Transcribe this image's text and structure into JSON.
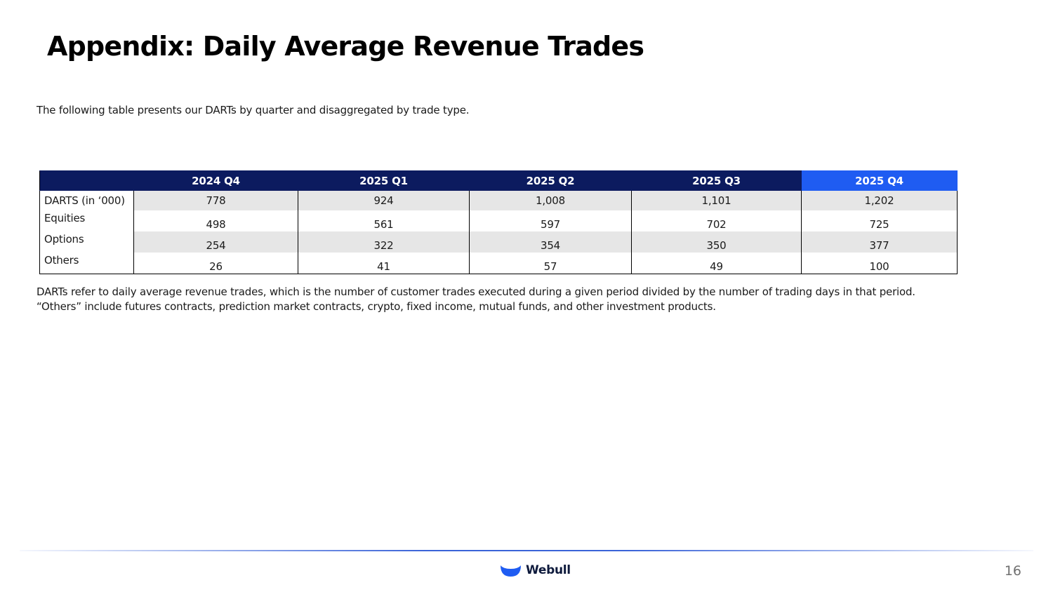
{
  "title": "Appendix:  Daily Average Revenue Trades",
  "intro": "The following table presents our DARTs by quarter and disaggregated by trade type.",
  "table": {
    "corner": "",
    "columns": [
      "2024 Q4",
      "2025 Q1",
      "2025 Q2",
      "2025 Q3",
      "2025 Q4"
    ],
    "highlight_color": "#1f5cf2",
    "header_color": "#0c1b5f",
    "rows": [
      {
        "label": "DARTS (in ‘000)",
        "values": [
          "778",
          "924",
          "1,008",
          "1,101",
          "1,202"
        ]
      },
      {
        "label": "Equities",
        "values": [
          "498",
          "561",
          "597",
          "702",
          "725"
        ]
      },
      {
        "label": "Options",
        "values": [
          "254",
          "322",
          "354",
          "350",
          "377"
        ]
      },
      {
        "label": "Others",
        "values": [
          "26",
          "41",
          "57",
          "49",
          "100"
        ]
      }
    ]
  },
  "notes": [
    "DARTs refer to daily average revenue trades, which is the number of customer trades executed during a given period divided by the number of trading days in that period.",
    "“Others” include futures contracts, prediction market contracts, crypto, fixed income, mutual funds, and other investment products."
  ],
  "footer": {
    "brand": "Webull",
    "brand_icon": "webull-smile-icon",
    "brand_color": "#1f5cf2",
    "page_number": "16"
  }
}
